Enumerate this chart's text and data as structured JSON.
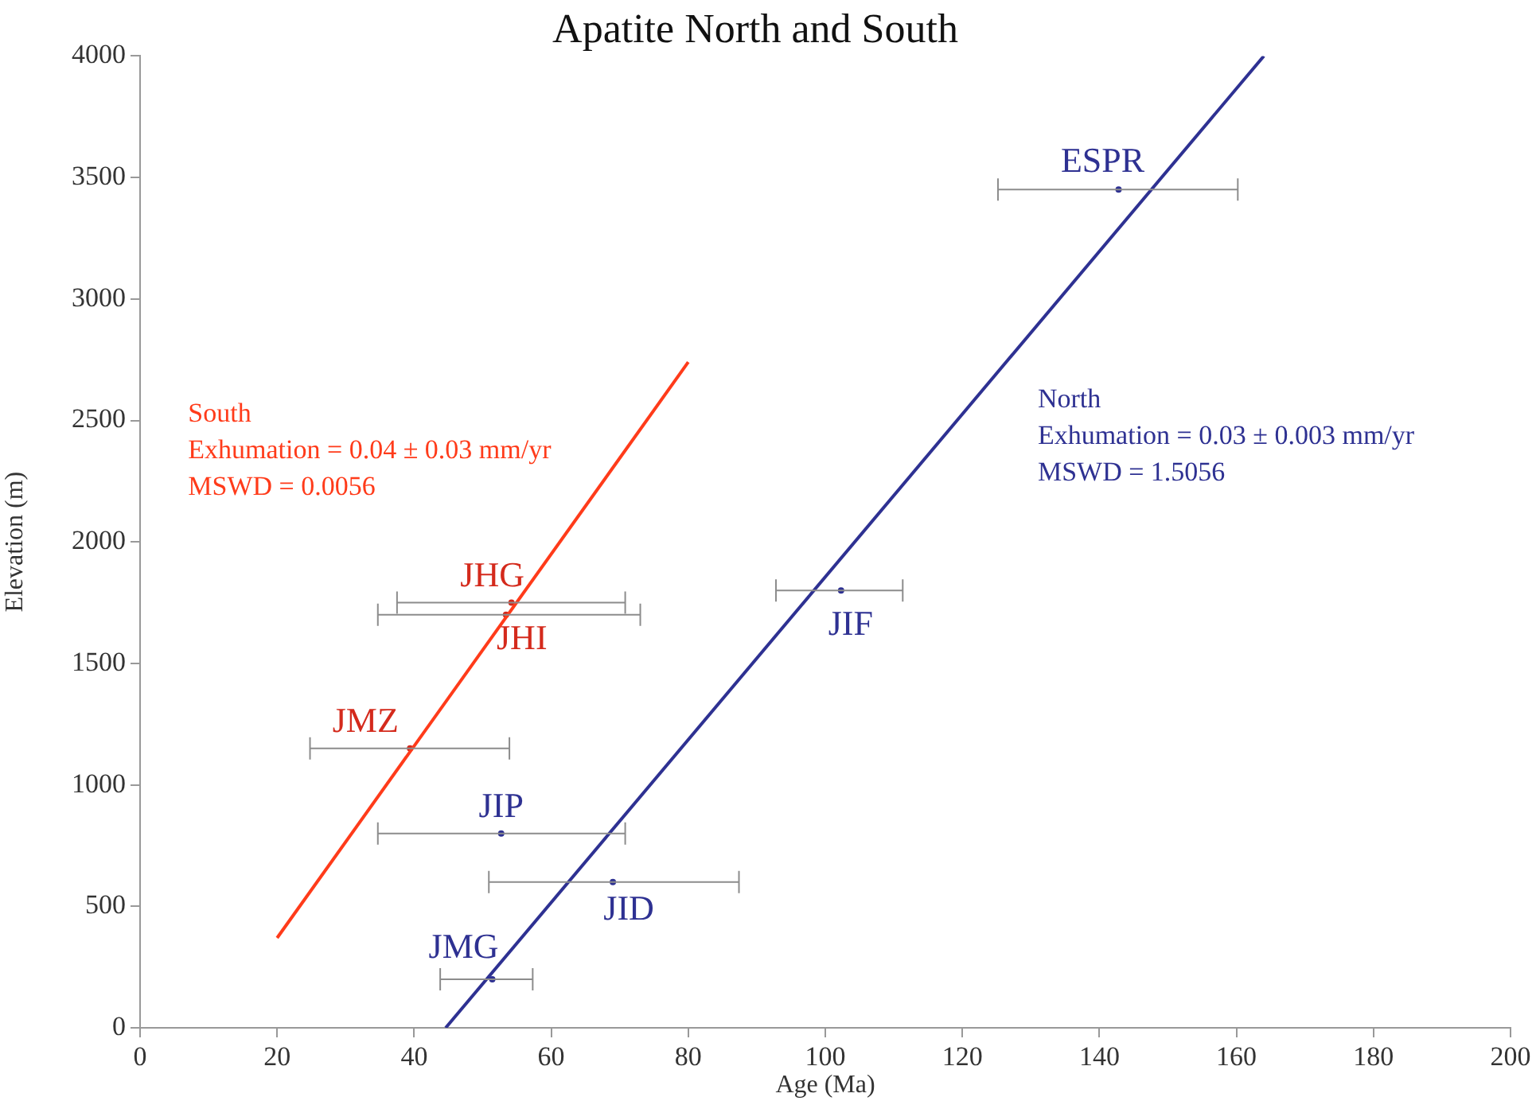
{
  "chart_data": {
    "type": "scatter",
    "title": "Apatite North and South",
    "xlabel": "Age (Ma)",
    "ylabel": "Elevation (m)",
    "xlim": [
      0,
      200
    ],
    "xticks": [
      0,
      20,
      40,
      60,
      80,
      100,
      120,
      140,
      160,
      180,
      200
    ],
    "ylim": [
      0,
      4000
    ],
    "yticks": [
      0,
      500,
      1000,
      1500,
      2000,
      2500,
      3000,
      3500,
      4000
    ],
    "grid": false,
    "legend": false,
    "marker": "circle",
    "annotations": [
      "South\nExhumation = 0.04 ± 0.03 mm/yr\nMSWD = 0.0056",
      "North\nExhumation = 0.03 ± 0.003 mm/yr\nMSWD = 1.5056"
    ],
    "series": [
      {
        "type": "line",
        "color": "#ff3b1a",
        "x": [
          20,
          80
        ],
        "values": [
          370,
          2740
        ],
        "marker": "none"
      },
      {
        "type": "line",
        "color": "#2e3192",
        "x": [
          44.6,
          164
        ],
        "values": [
          0,
          4000
        ],
        "marker": "none"
      },
      {
        "color": "#d42a1c",
        "x": [
          54.2,
          53.4,
          39.4
        ],
        "values": [
          1750,
          1700,
          1150
        ],
        "xerrors": [
          [
            37.5,
            70.8
          ],
          [
            34.7,
            73
          ],
          [
            24.8,
            53.9
          ]
        ],
        "value_labels": [
          "JHG",
          "JHI",
          "JMZ"
        ]
      },
      {
        "color": "#2e3192",
        "x": [
          52.7,
          69,
          51.4,
          102.3,
          142.8
        ],
        "values": [
          800,
          600,
          200,
          1800,
          3450
        ],
        "xerrors": [
          [
            34.7,
            70.8
          ],
          [
            50.9,
            87.4
          ],
          [
            43.8,
            57.3
          ],
          [
            92.8,
            111.3
          ],
          [
            125.2,
            160.2
          ]
        ],
        "value_labels": [
          "JIP",
          "JID",
          "JMG",
          "JIF",
          "ESPR"
        ]
      }
    ]
  }
}
